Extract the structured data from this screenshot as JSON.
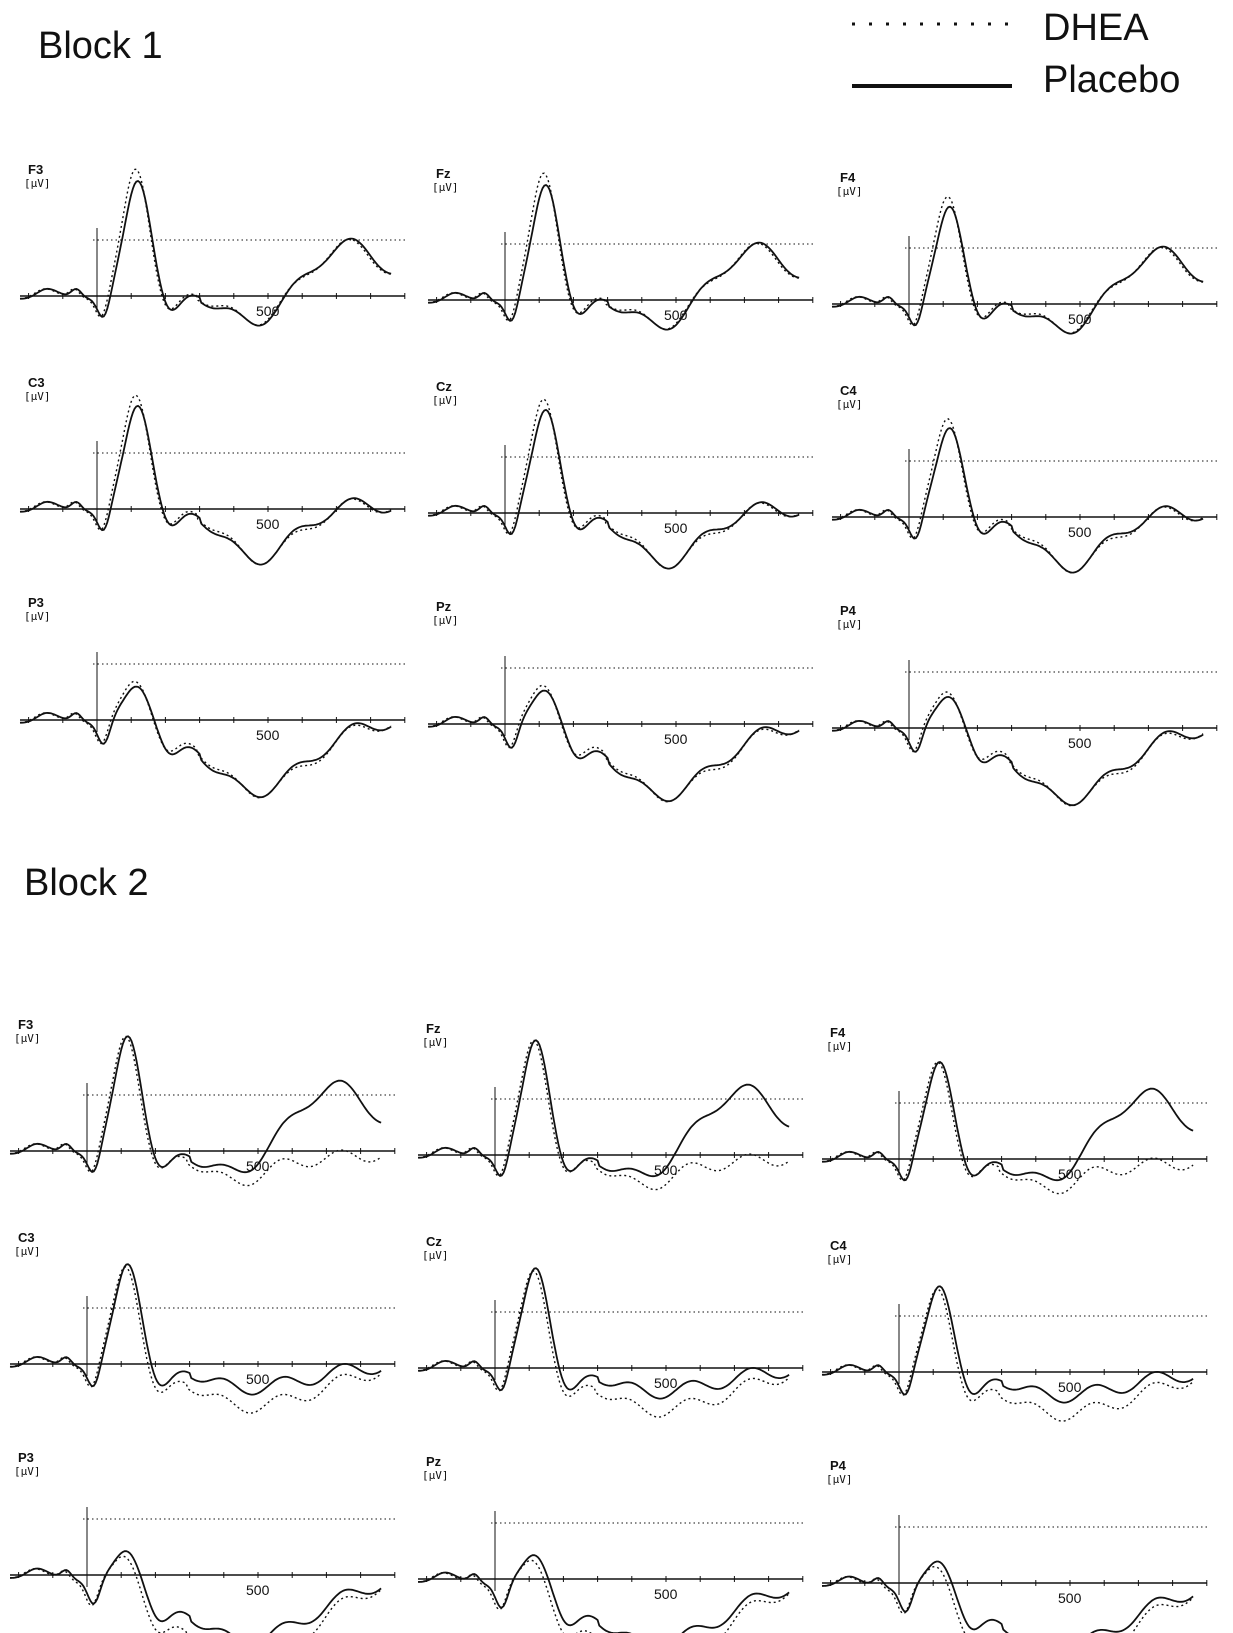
{
  "legend": {
    "dhea_label": "DHEA",
    "placebo_label": "Placebo"
  },
  "chart_data": {
    "type": "line",
    "x_tick_label": "500",
    "x_unit": "ms",
    "blocks": [
      {
        "title": "Block 1",
        "panels": [
          {
            "electrode": "F3",
            "unit": "[µV]"
          },
          {
            "electrode": "Fz",
            "unit": "[µV]"
          },
          {
            "electrode": "F4",
            "unit": "[µV]"
          },
          {
            "electrode": "C3",
            "unit": "[µV]"
          },
          {
            "electrode": "Cz",
            "unit": "[µV]"
          },
          {
            "electrode": "C4",
            "unit": "[µV]"
          },
          {
            "electrode": "P3",
            "unit": "[µV]"
          },
          {
            "electrode": "Pz",
            "unit": "[µV]"
          },
          {
            "electrode": "P4",
            "unit": "[µV]"
          }
        ]
      },
      {
        "title": "Block 2",
        "panels": [
          {
            "electrode": "F3",
            "unit": "[µV]"
          },
          {
            "electrode": "Fz",
            "unit": "[µV]"
          },
          {
            "electrode": "F4",
            "unit": "[µV]"
          },
          {
            "electrode": "C3",
            "unit": "[µV]"
          },
          {
            "electrode": "Cz",
            "unit": "[µV]"
          },
          {
            "electrode": "C4",
            "unit": "[µV]"
          },
          {
            "electrode": "P3",
            "unit": "[µV]"
          },
          {
            "electrode": "Pz",
            "unit": "[µV]"
          },
          {
            "electrode": "P4",
            "unit": "[µV]"
          }
        ]
      }
    ],
    "series": [
      {
        "name": "DHEA",
        "style": "dotted"
      },
      {
        "name": "Placebo",
        "style": "solid"
      }
    ]
  }
}
